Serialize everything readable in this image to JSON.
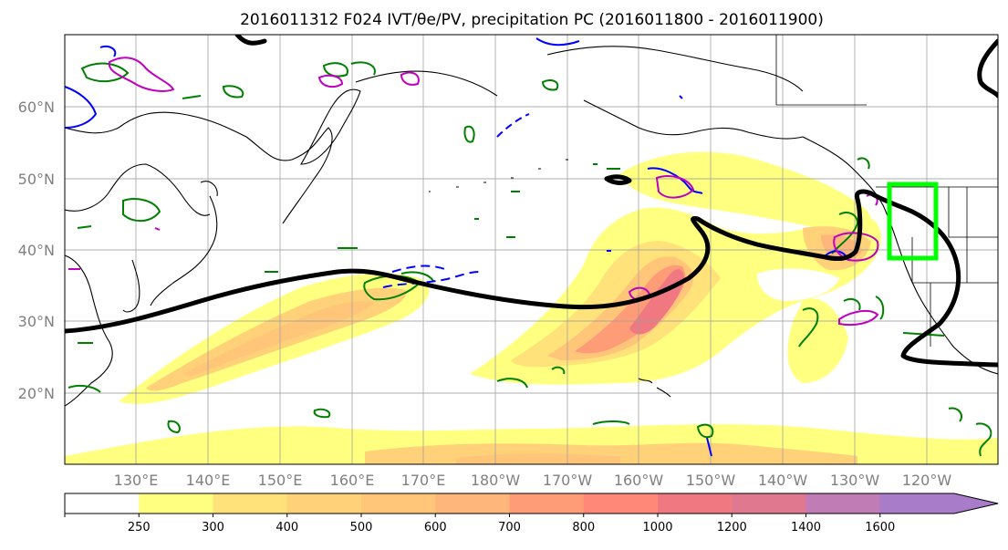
{
  "title": "2016011312 F024 IVT/θe/PV, precipitation PC (2016011800 - 2016011900)",
  "map": {
    "lat_labels": [
      {
        "lat": 60,
        "label": "60°N"
      },
      {
        "lat": 50,
        "label": "50°N"
      },
      {
        "lat": 40,
        "label": "40°N"
      },
      {
        "lat": 30,
        "label": "30°N"
      },
      {
        "lat": 20,
        "label": "20°N"
      }
    ],
    "lon_labels": [
      {
        "lon": 130,
        "label": "130°E"
      },
      {
        "lon": 140,
        "label": "140°E"
      },
      {
        "lon": 150,
        "label": "150°E"
      },
      {
        "lon": 160,
        "label": "160°E"
      },
      {
        "lon": 170,
        "label": "170°E"
      },
      {
        "lon": 180,
        "label": "180°W"
      },
      {
        "lon": 190,
        "label": "170°W"
      },
      {
        "lon": 200,
        "label": "160°W"
      },
      {
        "lon": 210,
        "label": "150°W"
      },
      {
        "lon": 220,
        "label": "140°W"
      },
      {
        "lon": 230,
        "label": "130°W"
      },
      {
        "lon": 240,
        "label": "120°W"
      }
    ],
    "extent": {
      "lon_min": 120,
      "lon_max": 250,
      "lat_min": 10,
      "lat_max": 70
    },
    "highlight_box": {
      "lon_min": 235,
      "lon_max": 241.5,
      "lat_min": 39,
      "lat_max": 49,
      "color": "#00ff00"
    }
  },
  "colorbar": {
    "levels": [
      "250",
      "300",
      "400",
      "500",
      "600",
      "700",
      "800",
      "1000",
      "1200",
      "1400",
      "1600"
    ],
    "colors": [
      "#ffff80",
      "#ffe27a",
      "#ffd27a",
      "#ffc67a",
      "#ffb67a",
      "#ff9c78",
      "#ff8878",
      "#f07880",
      "#e07890",
      "#c07cb4",
      "#a87cc8"
    ],
    "extend": "max"
  },
  "colors": {
    "front": "#000000",
    "pv_green": "#008000",
    "pv_blue": "#0000ff",
    "pv_magenta": "#c000c0"
  }
}
